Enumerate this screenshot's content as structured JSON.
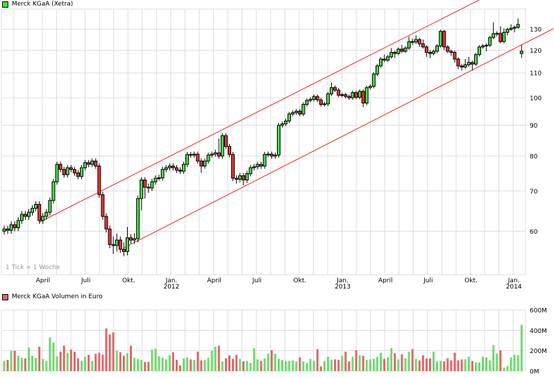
{
  "price_legend": {
    "label": "Merck KGaA (Xetra)",
    "color": "#44dd44"
  },
  "volume_legend": {
    "label": "Merck KGaA Volumen in Euro",
    "color": "#e06666"
  },
  "tick_note": "1 Tick = 1 Woche",
  "chart_data": [
    {
      "type": "candlestick",
      "title": "Merck KGaA (Xetra)",
      "y_scale": "log",
      "ylim": [
        50.8,
        140.5
      ],
      "grid": true,
      "y_ticks": [
        "60",
        "70",
        "80",
        "90",
        "100",
        "110",
        "120",
        "130"
      ],
      "x_ticks": [
        {
          "label": "April",
          "year": ""
        },
        {
          "label": "Juli",
          "year": ""
        },
        {
          "label": "Okt.",
          "year": ""
        },
        {
          "label": "Jan.",
          "year": "2012"
        },
        {
          "label": "April",
          "year": ""
        },
        {
          "label": "Juli",
          "year": ""
        },
        {
          "label": "Okt.",
          "year": ""
        },
        {
          "label": "Jan.",
          "year": "2013"
        },
        {
          "label": "April",
          "year": ""
        },
        {
          "label": "Juli",
          "year": ""
        },
        {
          "label": "Okt.",
          "year": ""
        },
        {
          "label": "Jan.",
          "year": "2014"
        }
      ],
      "colors": {
        "up": "#44dd44",
        "down": "#ee3333",
        "trendline": "#ee2222"
      },
      "trendlines": [
        {
          "from": {
            "week": 10,
            "price": 62.1
          },
          "to": {
            "week": 135,
            "price": 145.5
          }
        },
        {
          "from": {
            "week": 34,
            "price": 56.3
          },
          "to": {
            "week": 156,
            "price": 130.3
          }
        }
      ],
      "ohlc": [
        [
          60.0,
          61.3,
          59.2,
          60.5
        ],
        [
          60.5,
          61.3,
          59.4,
          60.2
        ],
        [
          60.2,
          62.3,
          59.4,
          61.5
        ],
        [
          61.5,
          62.3,
          60.0,
          60.8
        ],
        [
          60.8,
          63.3,
          60.0,
          62.5
        ],
        [
          62.5,
          64.8,
          61.7,
          64.0
        ],
        [
          64.0,
          64.8,
          62.7,
          63.5
        ],
        [
          63.5,
          65.3,
          62.7,
          64.5
        ],
        [
          64.5,
          66.3,
          63.7,
          65.5
        ],
        [
          65.5,
          67.3,
          64.7,
          66.5
        ],
        [
          66.5,
          67.3,
          61.7,
          62.5
        ],
        [
          62.5,
          64.3,
          61.7,
          63.5
        ],
        [
          63.5,
          65.3,
          62.7,
          64.5
        ],
        [
          64.5,
          68.3,
          63.7,
          67.5
        ],
        [
          67.5,
          73.3,
          66.7,
          72.5
        ],
        [
          72.5,
          78.3,
          71.7,
          77.5
        ],
        [
          77.5,
          78.3,
          75.2,
          76.0
        ],
        [
          76.0,
          76.8,
          73.7,
          74.5
        ],
        [
          74.5,
          77.3,
          73.7,
          76.5
        ],
        [
          76.5,
          77.3,
          75.2,
          76.0
        ],
        [
          76.0,
          76.8,
          74.2,
          75.0
        ],
        [
          75.0,
          75.8,
          73.2,
          74.0
        ],
        [
          74.0,
          77.3,
          73.2,
          76.5
        ],
        [
          76.5,
          78.8,
          75.7,
          78.0
        ],
        [
          78.0,
          78.8,
          76.7,
          77.5
        ],
        [
          77.5,
          79.3,
          76.7,
          78.5
        ],
        [
          78.5,
          79.3,
          76.2,
          77.0
        ],
        [
          77.0,
          77.8,
          68.2,
          69.0
        ],
        [
          69.0,
          69.8,
          62.7,
          63.5
        ],
        [
          63.5,
          64.3,
          59.7,
          60.5
        ],
        [
          60.5,
          61.3,
          56.2,
          57.0
        ],
        [
          57.0,
          58.8,
          55.0,
          56.8
        ],
        [
          56.8,
          59.5,
          55.5,
          58.0
        ],
        [
          58.0,
          58.8,
          55.2,
          56.0
        ],
        [
          56.0,
          57.5,
          54.5,
          55.5
        ],
        [
          55.5,
          61.0,
          54.7,
          58.5
        ],
        [
          58.5,
          59.3,
          57.2,
          58.0
        ],
        [
          58.0,
          59.5,
          57.2,
          58.3
        ],
        [
          58.3,
          68.8,
          57.5,
          68.0
        ],
        [
          68.0,
          73.8,
          65.0,
          73.0
        ],
        [
          73.0,
          73.8,
          68.0,
          71.0
        ],
        [
          71.0,
          72.0,
          69.5,
          70.8
        ],
        [
          70.8,
          73.3,
          70.0,
          72.5
        ],
        [
          72.5,
          74.3,
          71.7,
          73.5
        ],
        [
          73.5,
          74.5,
          72.8,
          73.6
        ],
        [
          73.6,
          76.8,
          72.8,
          76.0
        ],
        [
          76.0,
          77.3,
          75.2,
          76.5
        ],
        [
          76.5,
          77.8,
          75.7,
          77.0
        ],
        [
          77.0,
          77.8,
          75.7,
          76.5
        ],
        [
          76.5,
          77.3,
          75.0,
          75.8
        ],
        [
          75.8,
          76.6,
          74.7,
          75.5
        ],
        [
          75.5,
          78.3,
          74.7,
          77.5
        ],
        [
          77.5,
          81.3,
          76.7,
          80.5
        ],
        [
          80.5,
          81.3,
          79.5,
          80.3
        ],
        [
          80.3,
          81.4,
          79.5,
          80.6
        ],
        [
          80.6,
          81.4,
          77.7,
          78.5
        ],
        [
          78.5,
          79.3,
          75.0,
          77.0
        ],
        [
          77.0,
          79.3,
          76.2,
          78.5
        ],
        [
          78.5,
          81.1,
          77.7,
          80.3
        ],
        [
          80.3,
          81.4,
          79.5,
          80.6
        ],
        [
          80.6,
          82.0,
          79.8,
          81.0
        ],
        [
          81.0,
          85.5,
          79.2,
          80.0
        ],
        [
          80.0,
          87.3,
          79.2,
          86.5
        ],
        [
          86.5,
          87.3,
          82.2,
          83.0
        ],
        [
          83.0,
          83.8,
          79.7,
          80.5
        ],
        [
          80.5,
          81.3,
          72.7,
          73.5
        ],
        [
          73.5,
          74.3,
          72.0,
          73.2
        ],
        [
          73.2,
          75.0,
          72.4,
          74.2
        ],
        [
          74.2,
          75.0,
          71.5,
          73.0
        ],
        [
          73.0,
          75.6,
          72.2,
          74.8
        ],
        [
          74.8,
          77.3,
          74.0,
          76.5
        ],
        [
          76.5,
          77.6,
          75.7,
          76.8
        ],
        [
          76.8,
          78.3,
          76.0,
          77.5
        ],
        [
          77.5,
          78.3,
          76.2,
          77.0
        ],
        [
          77.0,
          81.3,
          76.2,
          80.5
        ],
        [
          80.5,
          81.4,
          79.7,
          80.6
        ],
        [
          80.6,
          81.4,
          79.2,
          80.0
        ],
        [
          80.0,
          81.1,
          79.2,
          80.3
        ],
        [
          80.3,
          90.8,
          79.5,
          90.0
        ],
        [
          90.0,
          91.3,
          89.2,
          90.5
        ],
        [
          90.5,
          92.3,
          89.7,
          91.5
        ],
        [
          91.5,
          94.8,
          90.7,
          94.0
        ],
        [
          94.0,
          95.3,
          93.2,
          94.5
        ],
        [
          94.5,
          95.8,
          93.7,
          95.0
        ],
        [
          95.0,
          95.8,
          93.2,
          94.0
        ],
        [
          94.0,
          98.3,
          93.2,
          97.5
        ],
        [
          97.5,
          99.8,
          96.7,
          99.0
        ],
        [
          99.0,
          100.2,
          98.2,
          99.4
        ],
        [
          99.4,
          101.3,
          98.6,
          100.5
        ],
        [
          100.5,
          101.3,
          98.4,
          99.2
        ],
        [
          99.2,
          100.0,
          96.7,
          97.5
        ],
        [
          97.5,
          98.5,
          96.7,
          97.7
        ],
        [
          97.7,
          102.3,
          96.9,
          101.5
        ],
        [
          101.5,
          106.0,
          100.7,
          104.0
        ],
        [
          104.0,
          104.8,
          102.2,
          103.0
        ],
        [
          103.0,
          103.8,
          100.2,
          101.0
        ],
        [
          101.0,
          102.0,
          100.2,
          101.2
        ],
        [
          101.2,
          102.0,
          99.7,
          100.5
        ],
        [
          100.5,
          101.3,
          99.2,
          100.0
        ],
        [
          100.0,
          102.8,
          99.2,
          102.0
        ],
        [
          102.0,
          102.8,
          99.4,
          100.2
        ],
        [
          100.2,
          103.3,
          99.4,
          102.5
        ],
        [
          102.5,
          103.3,
          96.5,
          98.0
        ],
        [
          98.0,
          104.8,
          97.2,
          104.0
        ],
        [
          104.0,
          105.3,
          103.2,
          104.5
        ],
        [
          104.5,
          110.3,
          103.7,
          109.5
        ],
        [
          109.5,
          113.8,
          108.7,
          113.0
        ],
        [
          113.0,
          116.8,
          112.2,
          116.0
        ],
        [
          116.0,
          118.0,
          114.7,
          115.5
        ],
        [
          115.5,
          117.8,
          114.7,
          117.0
        ],
        [
          117.0,
          121.0,
          116.2,
          119.0
        ],
        [
          119.0,
          119.8,
          116.5,
          118.5
        ],
        [
          118.5,
          121.3,
          117.7,
          120.5
        ],
        [
          120.5,
          122.5,
          118.7,
          119.5
        ],
        [
          119.5,
          121.8,
          118.7,
          121.0
        ],
        [
          121.0,
          126.5,
          120.2,
          124.0
        ],
        [
          124.0,
          125.5,
          122.5,
          123.8
        ],
        [
          123.8,
          127.0,
          123.0,
          125.0
        ],
        [
          125.0,
          125.8,
          121.5,
          123.0
        ],
        [
          123.0,
          125.0,
          120.7,
          121.5
        ],
        [
          121.5,
          122.3,
          117.0,
          119.0
        ],
        [
          119.0,
          120.0,
          116.5,
          118.5
        ],
        [
          118.5,
          120.3,
          117.7,
          119.5
        ],
        [
          119.5,
          122.8,
          118.7,
          122.0
        ],
        [
          122.0,
          129.8,
          121.2,
          129.0
        ],
        [
          129.0,
          129.8,
          120.0,
          121.5
        ],
        [
          121.5,
          122.3,
          118.7,
          119.5
        ],
        [
          119.5,
          120.3,
          117.5,
          119.0
        ],
        [
          119.0,
          119.8,
          114.5,
          116.0
        ],
        [
          116.0,
          116.8,
          111.5,
          113.0
        ],
        [
          113.0,
          113.8,
          111.0,
          112.5
        ],
        [
          112.5,
          116.0,
          111.7,
          113.5
        ],
        [
          113.5,
          117.0,
          112.7,
          114.5
        ],
        [
          114.5,
          115.3,
          111.0,
          113.8
        ],
        [
          113.8,
          118.8,
          113.0,
          118.0
        ],
        [
          118.0,
          122.3,
          117.2,
          121.5
        ],
        [
          121.5,
          122.8,
          120.7,
          122.0
        ],
        [
          122.0,
          123.1,
          119.5,
          122.3
        ],
        [
          122.3,
          126.8,
          121.5,
          126.0
        ],
        [
          126.0,
          133.5,
          125.2,
          127.8
        ],
        [
          127.8,
          129.0,
          126.5,
          128.0
        ],
        [
          128.0,
          131.5,
          123.2,
          124.0
        ],
        [
          124.0,
          130.5,
          123.2,
          128.5
        ],
        [
          128.5,
          130.8,
          127.0,
          130.0
        ],
        [
          130.0,
          132.5,
          129.2,
          130.5
        ],
        [
          130.5,
          131.8,
          128.5,
          131.0
        ],
        [
          131.0,
          135.5,
          130.2,
          132.5
        ],
        [
          118.5,
          122.5,
          116.5,
          119.5
        ]
      ]
    },
    {
      "type": "bar",
      "title": "Merck KGaA Volumen in Euro",
      "ylim": [
        0,
        600
      ],
      "y_ticks": [
        "600M",
        "400M",
        "200M",
        "0M"
      ],
      "grid": true,
      "colors": {
        "up": "#6ddb6d",
        "down": "#e06666",
        "flat": "#c0c0c0"
      },
      "values": [
        100,
        110,
        200,
        200,
        150,
        130,
        125,
        230,
        150,
        130,
        240,
        120,
        100,
        330,
        280,
        145,
        190,
        250,
        180,
        210,
        190,
        125,
        100,
        140,
        160,
        100,
        170,
        180,
        160,
        420,
        360,
        380,
        200,
        185,
        150,
        175,
        250,
        130,
        120,
        110,
        90,
        90,
        210,
        220,
        145,
        130,
        115,
        155,
        185,
        110,
        55,
        125,
        135,
        115,
        110,
        190,
        105,
        110,
        130,
        200,
        240,
        250,
        95,
        125,
        155,
        120,
        160,
        120,
        95,
        100,
        80,
        225,
        115,
        100,
        125,
        170,
        205,
        170,
        120,
        110,
        100,
        100,
        105,
        95,
        135,
        95,
        80,
        120,
        100,
        215,
        45,
        100,
        140,
        110,
        115,
        110,
        150,
        190,
        95,
        140,
        205,
        155,
        150,
        110,
        115,
        120,
        140,
        180,
        120,
        135,
        225,
        175,
        115,
        165,
        125,
        190,
        215,
        120,
        105,
        155,
        125,
        125,
        190,
        95,
        100,
        95,
        125,
        105,
        180,
        105,
        115,
        115,
        140,
        100,
        85,
        85,
        140,
        135,
        105,
        255,
        170,
        205,
        35,
        50,
        135,
        160,
        155,
        455
      ]
    }
  ]
}
